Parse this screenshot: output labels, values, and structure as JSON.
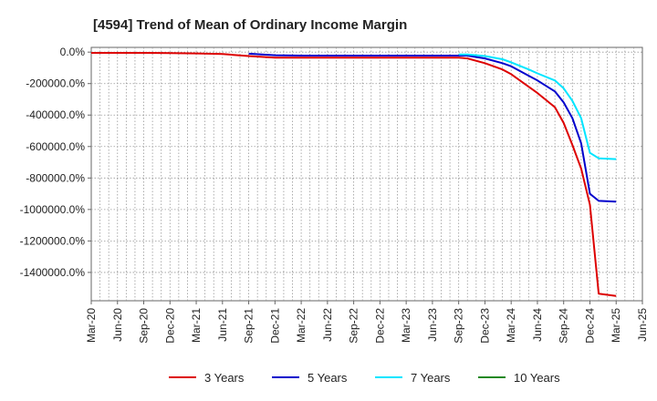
{
  "chart_data": {
    "type": "line",
    "title": "[4594]  Trend of Mean of Ordinary Income Margin",
    "xlabel": "",
    "ylabel": "",
    "x_tick_labels": [
      "Mar-20",
      "Jun-20",
      "Sep-20",
      "Dec-20",
      "Mar-21",
      "Jun-21",
      "Sep-21",
      "Dec-21",
      "Mar-22",
      "Jun-22",
      "Sep-22",
      "Dec-22",
      "Mar-23",
      "Jun-23",
      "Sep-23",
      "Dec-23",
      "Mar-24",
      "Jun-24",
      "Sep-24",
      "Dec-24",
      "Mar-25",
      "Jun-25"
    ],
    "y_ticks": [
      0,
      -200000,
      -400000,
      -600000,
      -800000,
      -1000000,
      -1200000,
      -1400000
    ],
    "y_tick_labels": [
      "0.0%",
      "-200000.0%",
      "-400000.0%",
      "-600000.0%",
      "-800000.0%",
      "-1000000.0%",
      "-1200000.0%",
      "-1400000.0%"
    ],
    "ylim": [
      -1580000,
      30000
    ],
    "grid": true,
    "legend_position": "bottom",
    "series": [
      {
        "name": "3 Years",
        "color": "#dd0000",
        "points": [
          [
            "Mar-20",
            -5000
          ],
          [
            "Jun-20",
            -5000
          ],
          [
            "Sep-20",
            -5000
          ],
          [
            "Dec-20",
            -6000
          ],
          [
            "Mar-21",
            -8000
          ],
          [
            "Jun-21",
            -12000
          ],
          [
            "Sep-21",
            -25000
          ],
          [
            "Dec-21",
            -35000
          ],
          [
            "Mar-22",
            -35000
          ],
          [
            "Jun-22",
            -35000
          ],
          [
            "Sep-22",
            -35000
          ],
          [
            "Dec-22",
            -35000
          ],
          [
            "Mar-23",
            -35000
          ],
          [
            "Jun-23",
            -35000
          ],
          [
            "Sep-23",
            -35000
          ],
          [
            "Oct-23",
            -40000
          ],
          [
            "Dec-23",
            -70000
          ],
          [
            "Feb-24",
            -110000
          ],
          [
            "Mar-24",
            -140000
          ],
          [
            "May-24",
            -220000
          ],
          [
            "Jun-24",
            -260000
          ],
          [
            "Aug-24",
            -350000
          ],
          [
            "Sep-24",
            -450000
          ],
          [
            "Oct-24",
            -590000
          ],
          [
            "Nov-24",
            -740000
          ],
          [
            "Dec-24",
            -970000
          ],
          [
            "Jan-25",
            -1535000
          ],
          [
            "Mar-25",
            -1550000
          ]
        ]
      },
      {
        "name": "5 Years",
        "color": "#0000cc",
        "points": [
          [
            "Sep-21",
            -10000
          ],
          [
            "Dec-21",
            -20000
          ],
          [
            "Mar-22",
            -22000
          ],
          [
            "Jun-22",
            -22000
          ],
          [
            "Sep-22",
            -22000
          ],
          [
            "Dec-22",
            -22000
          ],
          [
            "Mar-23",
            -22000
          ],
          [
            "Jun-23",
            -22000
          ],
          [
            "Sep-23",
            -22000
          ],
          [
            "Oct-23",
            -22000
          ],
          [
            "Dec-23",
            -40000
          ],
          [
            "Feb-24",
            -70000
          ],
          [
            "Mar-24",
            -90000
          ],
          [
            "May-24",
            -150000
          ],
          [
            "Jun-24",
            -180000
          ],
          [
            "Aug-24",
            -250000
          ],
          [
            "Sep-24",
            -320000
          ],
          [
            "Oct-24",
            -420000
          ],
          [
            "Nov-24",
            -580000
          ],
          [
            "Dec-24",
            -900000
          ],
          [
            "Jan-25",
            -945000
          ],
          [
            "Mar-25",
            -950000
          ]
        ]
      },
      {
        "name": "7 Years",
        "color": "#00e5ff",
        "points": [
          [
            "Sep-23",
            -15000
          ],
          [
            "Oct-23",
            -15000
          ],
          [
            "Dec-23",
            -25000
          ],
          [
            "Feb-24",
            -45000
          ],
          [
            "Mar-24",
            -65000
          ],
          [
            "May-24",
            -110000
          ],
          [
            "Jun-24",
            -135000
          ],
          [
            "Aug-24",
            -180000
          ],
          [
            "Sep-24",
            -230000
          ],
          [
            "Oct-24",
            -310000
          ],
          [
            "Nov-24",
            -420000
          ],
          [
            "Dec-24",
            -640000
          ],
          [
            "Jan-25",
            -675000
          ],
          [
            "Mar-25",
            -680000
          ]
        ]
      },
      {
        "name": "10 Years",
        "color": "#228822",
        "points": []
      }
    ]
  }
}
